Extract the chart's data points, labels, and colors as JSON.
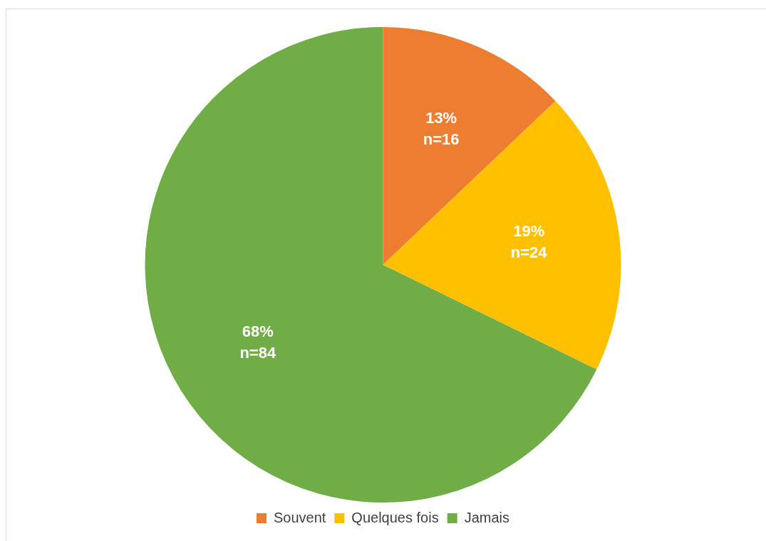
{
  "chart_data": {
    "type": "pie",
    "categories": [
      "Souvent",
      "Quelques fois",
      "Jamais"
    ],
    "values": [
      16,
      24,
      84
    ],
    "colors": [
      "#ed7d31",
      "#ffc000",
      "#70ad47"
    ],
    "value_labels": [
      "13%\nn=16",
      "19%\nn=24",
      "68%\nn=84"
    ],
    "legend": "bottom"
  }
}
